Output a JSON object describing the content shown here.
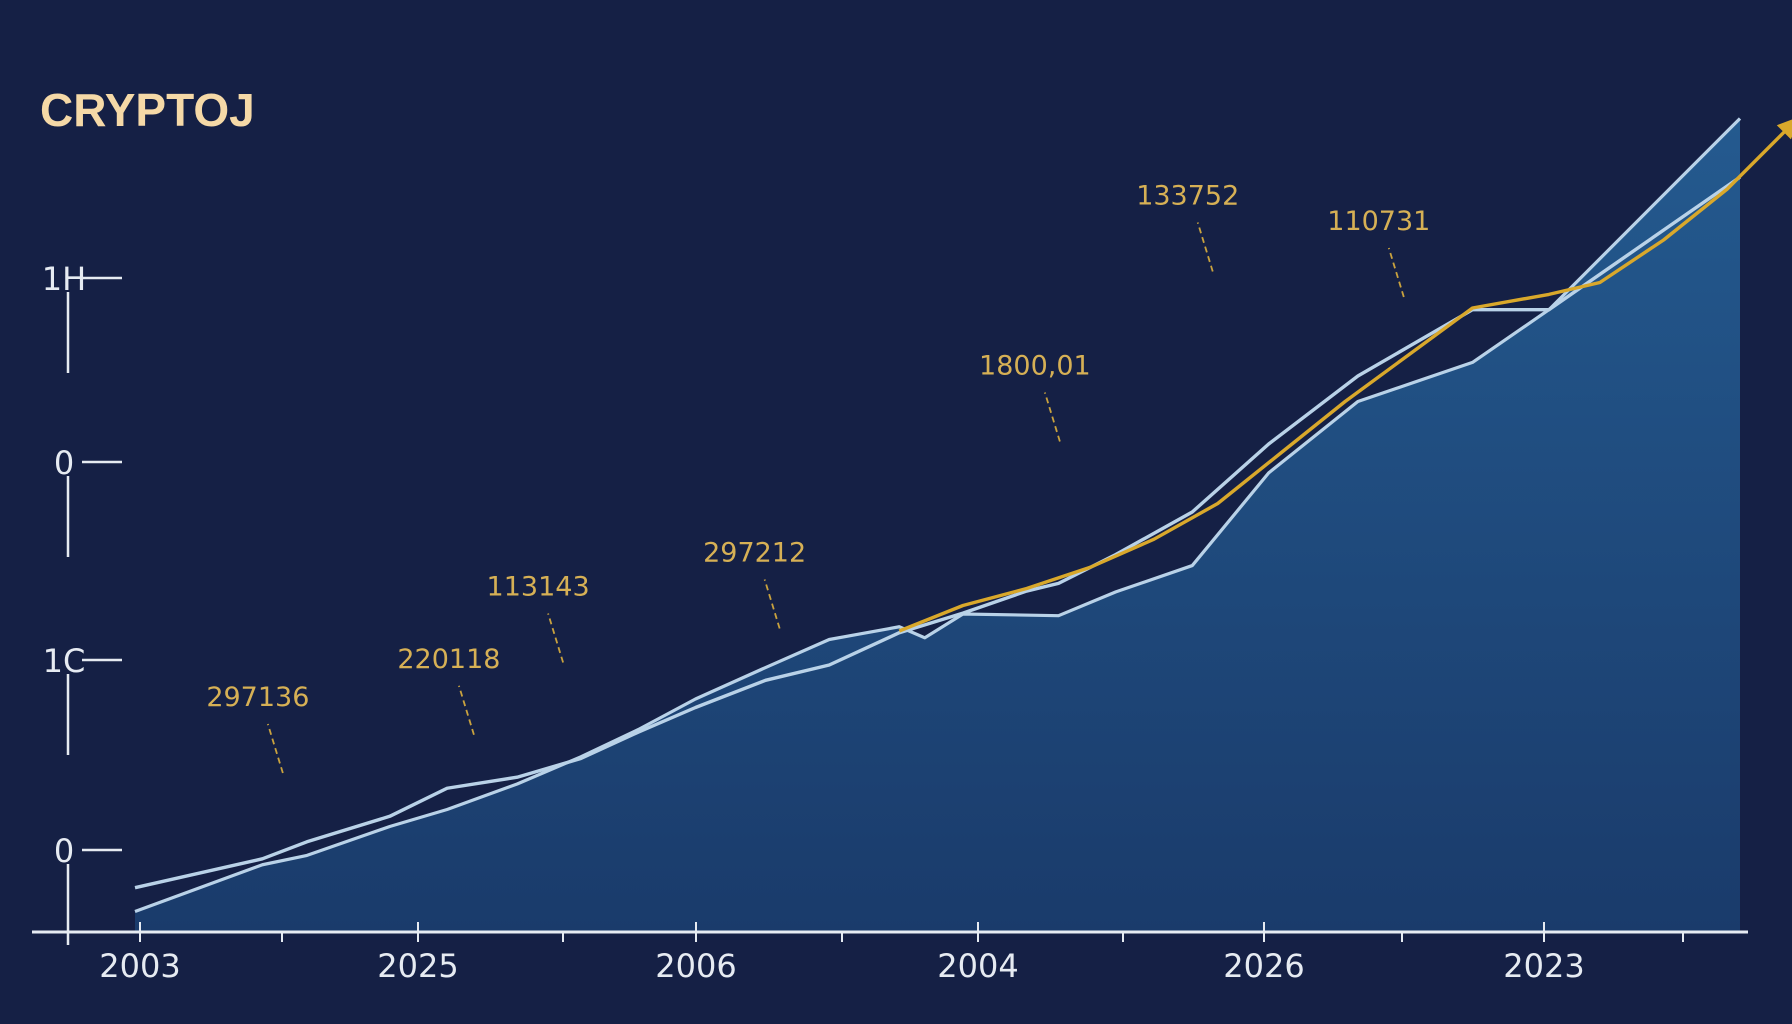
{
  "chart_data": {
    "type": "area",
    "title": "CRYPTOJ",
    "xlabel": "",
    "ylabel": "",
    "x_tick_labels": [
      "2003",
      "2025",
      "2006",
      "2004",
      "2026",
      "2023"
    ],
    "y_tick_labels": [
      "0",
      "1C",
      "0",
      "1H"
    ],
    "grid": false,
    "legend": "none",
    "x": [
      0,
      1,
      1.35,
      2,
      2.45,
      3,
      3.5,
      3.95,
      4.4,
      4.95,
      5.45,
      6,
      6.2,
      6.5,
      7.25,
      7.7,
      8.3,
      8.9,
      9.6,
      10.5,
      11.1,
      12.6
    ],
    "series": [
      {
        "values": [
          0.1,
          0.65,
          0.76,
          1.1,
          1.3,
          1.6,
          1.92,
          2.24,
          2.6,
          2.97,
          3.3,
          3.45,
          3.32,
          3.6,
          3.58,
          3.86,
          4.17,
          5.26,
          6.1,
          6.56,
          7.18,
          9.43
        ]
      }
    ],
    "lines": [
      {
        "x": [
          0,
          1,
          1.35,
          2,
          2.45,
          3,
          3.5,
          3.95,
          4.4,
          4.95,
          5.45,
          6,
          6.5,
          7,
          7.25,
          7.7,
          8.3,
          8.9,
          9.6,
          10.5,
          11.1,
          12.6
        ],
        "values": [
          0.38,
          0.72,
          0.92,
          1.22,
          1.55,
          1.68,
          1.9,
          2.21,
          2.5,
          2.82,
          3.0,
          3.38,
          3.61,
          3.87,
          3.96,
          4.3,
          4.8,
          5.6,
          6.4,
          7.18,
          7.18,
          8.74
        ]
      },
      {
        "x": [
          6,
          6.5,
          7,
          7.5,
          8,
          8.5,
          9.0,
          9.5,
          10.0,
          10.5,
          11.1,
          11.5,
          12.0,
          12.5,
          13.0
        ],
        "values": [
          3.4,
          3.7,
          3.9,
          4.15,
          4.48,
          4.9,
          5.5,
          6.1,
          6.65,
          7.2,
          7.36,
          7.5,
          8.0,
          8.6,
          9.35
        ],
        "color": "#d9a82b"
      }
    ],
    "annotations": [
      {
        "text": "297136",
        "x": 1.2,
        "y": 1.4
      },
      {
        "text": "220118",
        "x": 2.7,
        "y": 1.85
      },
      {
        "text": "113143",
        "x": 3.4,
        "y": 2.7
      },
      {
        "text": "297212",
        "x": 5.1,
        "y": 3.1
      },
      {
        "text": "1800,01",
        "x": 7.3,
        "y": 5.3
      },
      {
        "text": "133752",
        "x": 8.5,
        "y": 7.3
      },
      {
        "text": "110731",
        "x": 10.0,
        "y": 7.0
      }
    ],
    "colors": {
      "background": "#152045",
      "area_fill": "#1f4c7e",
      "area_outline": "#b9d2e8",
      "highlight_line": "#d9a82b",
      "annotation_text": "#d6b055",
      "axis": "#e6ebf2",
      "title": "#f5d9a7"
    }
  }
}
